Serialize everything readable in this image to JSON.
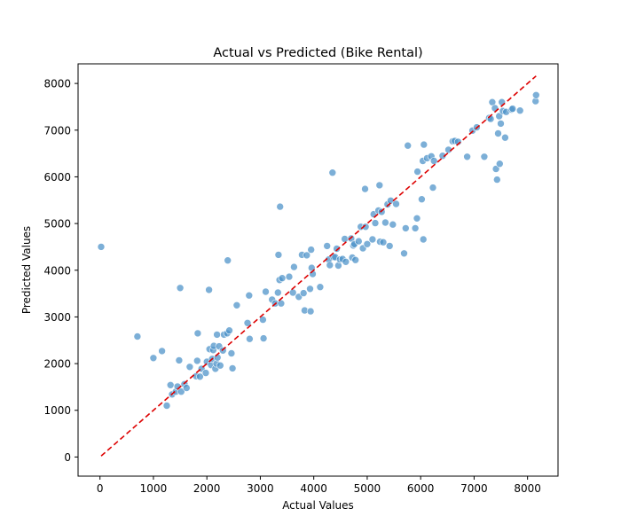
{
  "chart_data": {
    "type": "scatter",
    "title": "Actual vs Predicted (Bike Rental)",
    "xlabel": "Actual Values",
    "ylabel": "Predicted Values",
    "xlim": [
      -410,
      8570
    ],
    "ylim": [
      -410,
      8420
    ],
    "xticks": [
      0,
      1000,
      2000,
      3000,
      4000,
      5000,
      6000,
      7000,
      8000
    ],
    "yticks": [
      0,
      1000,
      2000,
      3000,
      4000,
      5000,
      6000,
      7000,
      8000
    ],
    "grid": false,
    "point_color": "#4a90c8",
    "reference_line": {
      "style": "dashed",
      "color": "#dd0000",
      "from": [
        22,
        22
      ],
      "to": [
        8160,
        8160
      ]
    },
    "points": [
      [
        22,
        4500
      ],
      [
        700,
        2580
      ],
      [
        1000,
        2120
      ],
      [
        1160,
        2270
      ],
      [
        1250,
        1100
      ],
      [
        1320,
        1540
      ],
      [
        1350,
        1340
      ],
      [
        1420,
        1400
      ],
      [
        1450,
        1510
      ],
      [
        1480,
        2070
      ],
      [
        1500,
        3620
      ],
      [
        1520,
        1400
      ],
      [
        1580,
        1560
      ],
      [
        1620,
        1480
      ],
      [
        1680,
        1930
      ],
      [
        1800,
        1730
      ],
      [
        1820,
        2060
      ],
      [
        1830,
        2650
      ],
      [
        1870,
        1720
      ],
      [
        1900,
        1890
      ],
      [
        1980,
        1800
      ],
      [
        2000,
        2040
      ],
      [
        2040,
        3580
      ],
      [
        2050,
        2310
      ],
      [
        2080,
        1970
      ],
      [
        2100,
        2100
      ],
      [
        2120,
        2290
      ],
      [
        2130,
        2380
      ],
      [
        2160,
        1890
      ],
      [
        2180,
        2000
      ],
      [
        2190,
        2620
      ],
      [
        2200,
        2130
      ],
      [
        2230,
        2370
      ],
      [
        2250,
        1960
      ],
      [
        2300,
        2280
      ],
      [
        2320,
        2620
      ],
      [
        2380,
        2650
      ],
      [
        2390,
        4210
      ],
      [
        2420,
        2710
      ],
      [
        2460,
        2220
      ],
      [
        2480,
        1900
      ],
      [
        2560,
        3250
      ],
      [
        2760,
        2870
      ],
      [
        2790,
        3460
      ],
      [
        2800,
        2530
      ],
      [
        3050,
        2940
      ],
      [
        3060,
        2540
      ],
      [
        3100,
        3540
      ],
      [
        3220,
        3370
      ],
      [
        3280,
        3290
      ],
      [
        3330,
        3520
      ],
      [
        3340,
        4330
      ],
      [
        3360,
        3790
      ],
      [
        3370,
        5360
      ],
      [
        3390,
        3290
      ],
      [
        3410,
        3830
      ],
      [
        3540,
        3860
      ],
      [
        3610,
        3520
      ],
      [
        3630,
        4070
      ],
      [
        3720,
        3430
      ],
      [
        3780,
        4330
      ],
      [
        3810,
        3510
      ],
      [
        3830,
        3140
      ],
      [
        3870,
        4320
      ],
      [
        3930,
        3600
      ],
      [
        3940,
        3120
      ],
      [
        3950,
        4440
      ],
      [
        3960,
        4050
      ],
      [
        3980,
        3920
      ],
      [
        4120,
        3640
      ],
      [
        4250,
        4520
      ],
      [
        4280,
        4230
      ],
      [
        4300,
        4110
      ],
      [
        4350,
        6090
      ],
      [
        4370,
        4280
      ],
      [
        4400,
        4280
      ],
      [
        4430,
        4460
      ],
      [
        4460,
        4100
      ],
      [
        4490,
        4230
      ],
      [
        4540,
        4240
      ],
      [
        4580,
        4670
      ],
      [
        4600,
        4180
      ],
      [
        4700,
        4680
      ],
      [
        4720,
        4270
      ],
      [
        4740,
        4530
      ],
      [
        4760,
        4560
      ],
      [
        4780,
        4220
      ],
      [
        4840,
        4620
      ],
      [
        4880,
        4930
      ],
      [
        4920,
        4470
      ],
      [
        4960,
        5740
      ],
      [
        4970,
        4930
      ],
      [
        5000,
        4560
      ],
      [
        5100,
        4660
      ],
      [
        5120,
        5200
      ],
      [
        5150,
        5010
      ],
      [
        5210,
        5280
      ],
      [
        5230,
        5820
      ],
      [
        5240,
        4610
      ],
      [
        5270,
        5250
      ],
      [
        5300,
        4600
      ],
      [
        5340,
        5020
      ],
      [
        5380,
        5410
      ],
      [
        5420,
        4520
      ],
      [
        5440,
        5490
      ],
      [
        5480,
        4980
      ],
      [
        5540,
        5420
      ],
      [
        5690,
        4360
      ],
      [
        5720,
        4900
      ],
      [
        5760,
        6670
      ],
      [
        5900,
        4900
      ],
      [
        5930,
        5110
      ],
      [
        5940,
        6110
      ],
      [
        6020,
        5520
      ],
      [
        6040,
        6340
      ],
      [
        6050,
        4660
      ],
      [
        6060,
        6690
      ],
      [
        6120,
        6400
      ],
      [
        6200,
        6440
      ],
      [
        6230,
        5770
      ],
      [
        6250,
        6340
      ],
      [
        6410,
        6450
      ],
      [
        6520,
        6580
      ],
      [
        6600,
        6760
      ],
      [
        6640,
        6770
      ],
      [
        6700,
        6750
      ],
      [
        6870,
        6430
      ],
      [
        6970,
        6990
      ],
      [
        7050,
        7060
      ],
      [
        7190,
        6430
      ],
      [
        7280,
        7260
      ],
      [
        7310,
        7240
      ],
      [
        7340,
        7600
      ],
      [
        7390,
        7470
      ],
      [
        7410,
        6170
      ],
      [
        7430,
        5940
      ],
      [
        7450,
        6930
      ],
      [
        7470,
        7300
      ],
      [
        7480,
        6280
      ],
      [
        7500,
        7140
      ],
      [
        7520,
        7600
      ],
      [
        7540,
        7410
      ],
      [
        7580,
        6840
      ],
      [
        7600,
        7390
      ],
      [
        7700,
        7440
      ],
      [
        7720,
        7460
      ],
      [
        7860,
        7420
      ],
      [
        8150,
        7620
      ],
      [
        8160,
        7750
      ]
    ]
  }
}
